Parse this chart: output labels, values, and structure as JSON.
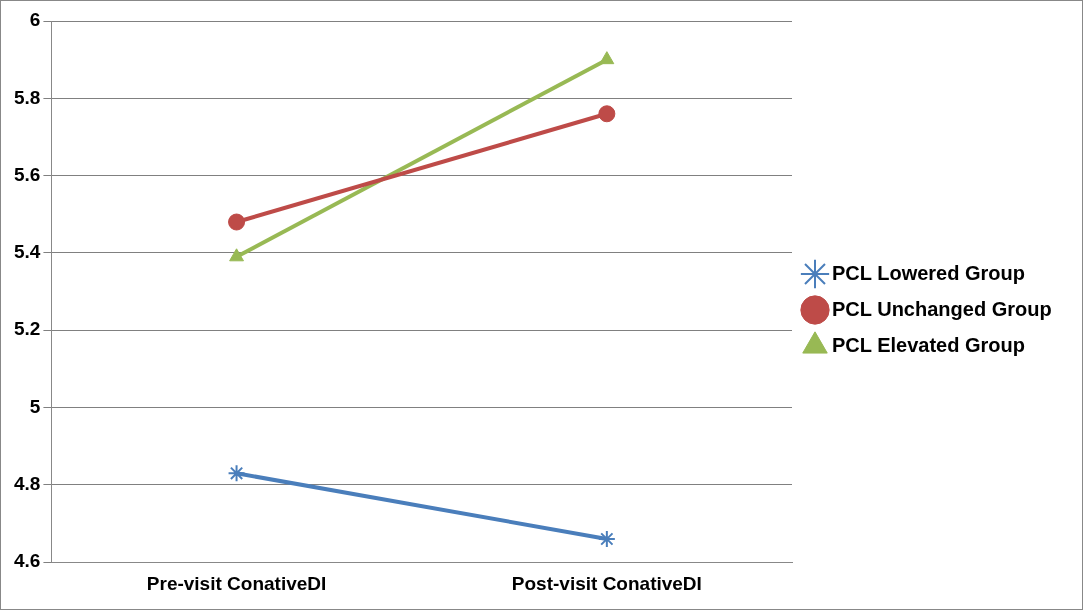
{
  "chart_data": {
    "type": "line",
    "categories": [
      "Pre-visit ConativeDI",
      "Post-visit ConativeDI"
    ],
    "series": [
      {
        "name": "PCL Lowered Group",
        "color": "#4a7ebb",
        "values": [
          4.83,
          4.66
        ],
        "marker": "cross"
      },
      {
        "name": "PCL Unchanged Group",
        "color": "#be4b48",
        "values": [
          5.48,
          5.76
        ],
        "marker": "circle"
      },
      {
        "name": "PCL Elevated Group",
        "color": "#98b954",
        "values": [
          5.39,
          5.9
        ],
        "marker": "triangle"
      }
    ],
    "ylim": [
      4.6,
      6
    ],
    "yticks": [
      4.6,
      4.8,
      5,
      5.2,
      5.4,
      5.6,
      5.8,
      6
    ],
    "grid": "y",
    "legend": "right",
    "line_style": "solid"
  }
}
